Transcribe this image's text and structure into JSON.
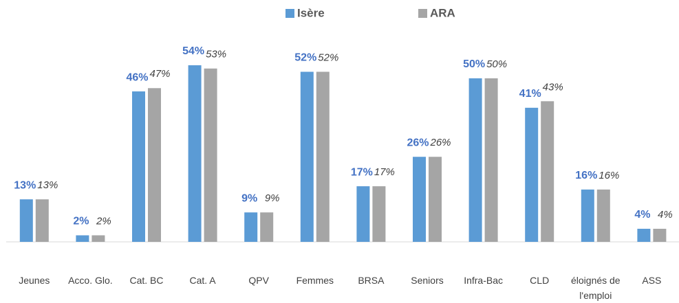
{
  "chart_data": {
    "type": "bar",
    "categories": [
      "Jeunes",
      "Acco. Glo.",
      "Cat. BC",
      "Cat. A",
      "QPV",
      "Femmes",
      "BRSA",
      "Seniors",
      "Infra-Bac",
      "CLD",
      "éloignés de l'emploi",
      "ASS"
    ],
    "series": [
      {
        "name": "Isère",
        "color": "#5b9bd5",
        "values": [
          13,
          2,
          46,
          54,
          9,
          52,
          17,
          26,
          50,
          41,
          16,
          4
        ],
        "value_labels": [
          "13%",
          "2%",
          "46%",
          "54%",
          "9%",
          "52%",
          "17%",
          "26%",
          "50%",
          "41%",
          "16%",
          "4%"
        ]
      },
      {
        "name": "ARA",
        "color": "#a5a5a5",
        "values": [
          13,
          2,
          47,
          53,
          9,
          52,
          17,
          26,
          50,
          43,
          16,
          4
        ],
        "value_labels": [
          "13%",
          "2%",
          "47%",
          "53%",
          "9%",
          "52%",
          "17%",
          "26%",
          "50%",
          "43%",
          "16%",
          "4%"
        ]
      }
    ]
  }
}
